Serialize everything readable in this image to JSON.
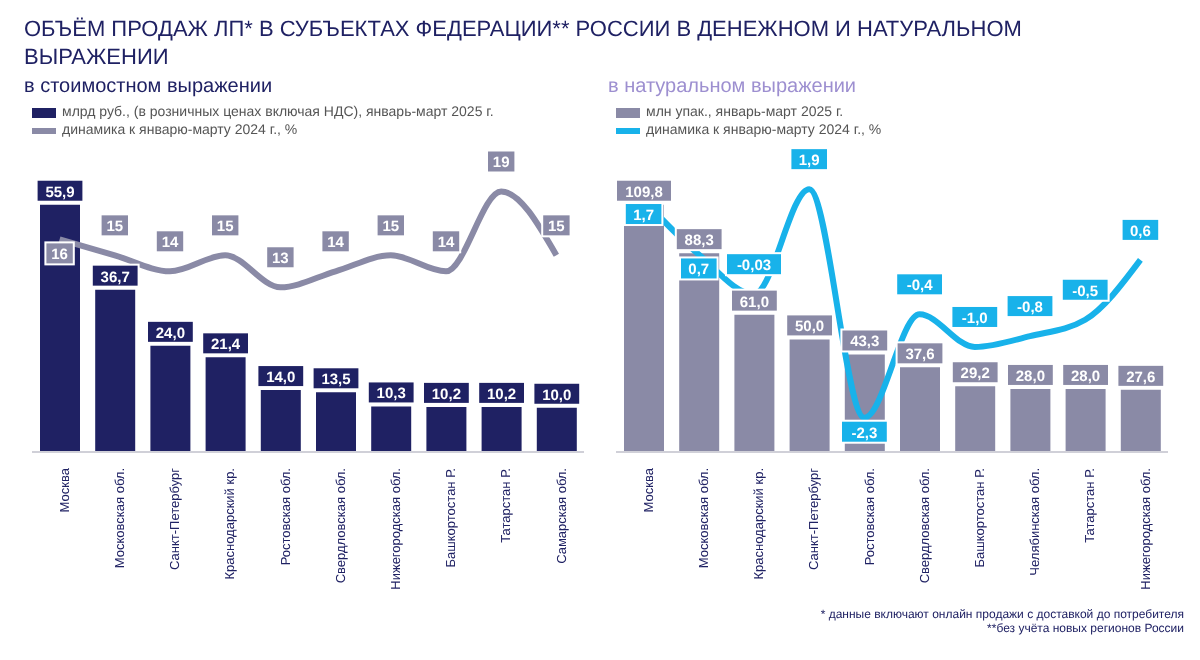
{
  "chart_data": [
    {
      "type": "bar",
      "title": "ОБЪЁМ ПРОДАЖ ЛП* В СУБЪЕКТАХ ФЕДЕРАЦИИ** РОССИИ В ДЕНЕЖНОМ И НАТУРАЛЬНОМ ВЫРАЖЕНИИ",
      "subtitle": "в стоимостном выражении",
      "categories": [
        "Москва",
        "Московская обл.",
        "Санкт-Петербург",
        "Краснодарский кр.",
        "Ростовская обл.",
        "Свердловская обл.",
        "Нижегородская обл.",
        "Башкортостан Р.",
        "Татарстан Р.",
        "Самарская обл."
      ],
      "series": [
        {
          "name": "млрд руб., (в розничных ценах включая НДС), январь-март 2025 г.",
          "color": "#1f2163",
          "values": [
            55.9,
            36.7,
            24.0,
            21.4,
            14.0,
            13.5,
            10.3,
            10.2,
            10.2,
            10.0
          ],
          "value_labels": [
            "55,9",
            "36,7",
            "24,0",
            "21,4",
            "14,0",
            "13,5",
            "10,3",
            "10,2",
            "10,2",
            "10,0"
          ]
        },
        {
          "type": "line",
          "axis": "y2",
          "name": "динамика к январю-марту 2024 г., %",
          "color": "#8a8aa6",
          "values": [
            16,
            15,
            14,
            15,
            13,
            14,
            15,
            14,
            19,
            15
          ],
          "value_labels": [
            "16",
            "15",
            "14",
            "15",
            "13",
            "14",
            "15",
            "14",
            "19",
            "15"
          ]
        }
      ],
      "data_labels": true,
      "legend": "top left",
      "tick_labels": "x",
      "grid": false
    },
    {
      "type": "bar",
      "subtitle": "в натуральном выражении",
      "categories": [
        "Москва",
        "Московская обл.",
        "Краснодарский кр.",
        "Санкт-Петербург",
        "Ростовская обл.",
        "Свердловская обл.",
        "Башкортостан Р.",
        "Челябинская обл.",
        "Татарстан Р.",
        "Нижегородская обл."
      ],
      "series": [
        {
          "name": "млн упак., январь-март 2025 г.",
          "color": "#8a8aa6",
          "values": [
            109.8,
            88.3,
            61.0,
            50.0,
            43.3,
            37.6,
            29.2,
            28.0,
            28.0,
            27.6
          ],
          "value_labels": [
            "109,8",
            "88,3",
            "61,0",
            "50,0",
            "43,3",
            "37,6",
            "29,2",
            "28,0",
            "28,0",
            "27,6"
          ]
        },
        {
          "type": "line",
          "axis": "y2",
          "name": "динамика к январю-марту 2024 г., %",
          "color": "#18b2ea",
          "values": [
            1.7,
            0.7,
            -0.03,
            1.9,
            -2.3,
            -0.4,
            -1.0,
            -0.8,
            -0.5,
            0.6
          ],
          "value_labels": [
            "1,7",
            "0,7",
            "-0,03",
            "1,9",
            "-2,3",
            "-0,4",
            "-1,0",
            "-0,8",
            "-0,5",
            "0,6"
          ]
        }
      ],
      "data_labels": true,
      "legend": "top left",
      "tick_labels": "x",
      "grid": false,
      "annotations": [
        "* данные включают онлайн продажи с доставкой до потребителя",
        "**без учёта новых регионов России"
      ]
    }
  ]
}
